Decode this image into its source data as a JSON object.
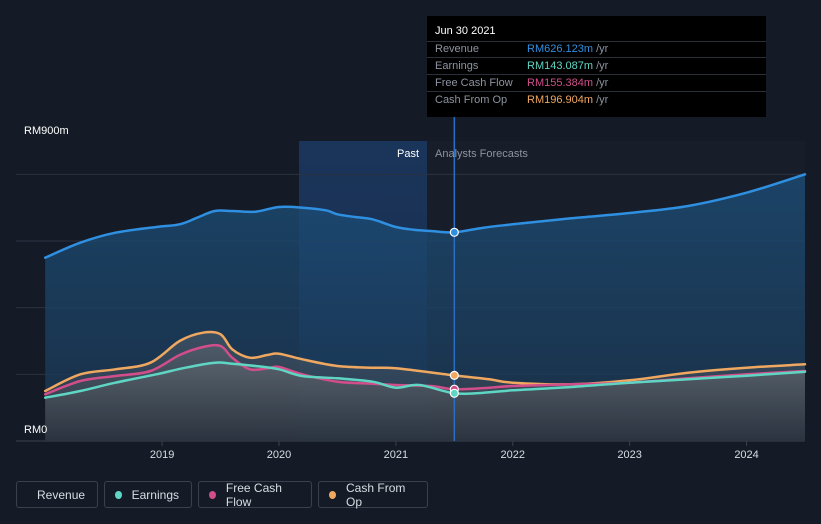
{
  "chart_data": {
    "type": "area",
    "title": "",
    "currency_prefix": "RM",
    "ylim": [
      0,
      900
    ],
    "y_ticks_labels": [
      "RM900m",
      "RM0"
    ],
    "x_ticks": [
      {
        "t": 2019.0,
        "label": "2019"
      },
      {
        "t": 2020.0,
        "label": "2020"
      },
      {
        "t": 2021.0,
        "label": "2021"
      },
      {
        "t": 2022.0,
        "label": "2022"
      },
      {
        "t": 2023.0,
        "label": "2023"
      },
      {
        "t": 2024.0,
        "label": "2024"
      }
    ],
    "xlim": [
      2017.75,
      2024.5
    ],
    "past_label": "Past",
    "forecast_label": "Analysts Forecasts",
    "past_region": [
      2020.5,
      2021.5
    ],
    "divider_t": 2021.5,
    "series": [
      {
        "name": "Revenue",
        "color": "#2f8fe0",
        "points": [
          [
            2018.0,
            550
          ],
          [
            2018.3,
            595
          ],
          [
            2018.6,
            625
          ],
          [
            2018.95,
            642
          ],
          [
            2019.15,
            650
          ],
          [
            2019.3,
            670
          ],
          [
            2019.45,
            690
          ],
          [
            2019.6,
            690
          ],
          [
            2019.8,
            688
          ],
          [
            2020.0,
            702
          ],
          [
            2020.2,
            700
          ],
          [
            2020.4,
            692
          ],
          [
            2020.5,
            680
          ],
          [
            2020.65,
            672
          ],
          [
            2020.8,
            665
          ],
          [
            2021.0,
            642
          ],
          [
            2021.15,
            634
          ],
          [
            2021.3,
            630
          ],
          [
            2021.5,
            626.123
          ],
          [
            2021.75,
            640
          ],
          [
            2022.0,
            650
          ],
          [
            2022.5,
            668
          ],
          [
            2023.0,
            684
          ],
          [
            2023.5,
            705
          ],
          [
            2024.0,
            745
          ],
          [
            2024.5,
            800
          ]
        ]
      },
      {
        "name": "Cash From Op",
        "color": "#f0a860",
        "points": [
          [
            2018.0,
            150
          ],
          [
            2018.3,
            200
          ],
          [
            2018.6,
            215
          ],
          [
            2018.9,
            235
          ],
          [
            2019.15,
            300
          ],
          [
            2019.35,
            325
          ],
          [
            2019.5,
            320
          ],
          [
            2019.6,
            275
          ],
          [
            2019.75,
            250
          ],
          [
            2019.9,
            258
          ],
          [
            2020.0,
            262
          ],
          [
            2020.2,
            245
          ],
          [
            2020.5,
            225
          ],
          [
            2020.8,
            220
          ],
          [
            2021.0,
            218
          ],
          [
            2021.5,
            196.904
          ],
          [
            2021.8,
            185
          ],
          [
            2022.0,
            175
          ],
          [
            2022.5,
            170
          ],
          [
            2023.0,
            182
          ],
          [
            2023.5,
            205
          ],
          [
            2024.0,
            220
          ],
          [
            2024.5,
            230
          ]
        ]
      },
      {
        "name": "Free Cash Flow",
        "color": "#d14e8a",
        "points": [
          [
            2018.0,
            140
          ],
          [
            2018.3,
            180
          ],
          [
            2018.6,
            195
          ],
          [
            2018.9,
            210
          ],
          [
            2019.15,
            258
          ],
          [
            2019.35,
            282
          ],
          [
            2019.5,
            285
          ],
          [
            2019.6,
            250
          ],
          [
            2019.75,
            215
          ],
          [
            2019.9,
            218
          ],
          [
            2020.0,
            222
          ],
          [
            2020.2,
            200
          ],
          [
            2020.5,
            178
          ],
          [
            2020.8,
            172
          ],
          [
            2021.0,
            168
          ],
          [
            2021.3,
            165
          ],
          [
            2021.5,
            155.384
          ],
          [
            2021.8,
            160
          ],
          [
            2022.0,
            165
          ],
          [
            2022.5,
            170
          ],
          [
            2023.0,
            175
          ],
          [
            2023.5,
            188
          ],
          [
            2024.0,
            200
          ],
          [
            2024.5,
            210
          ]
        ]
      },
      {
        "name": "Earnings",
        "color": "#5fd6c4",
        "points": [
          [
            2018.0,
            130
          ],
          [
            2018.3,
            150
          ],
          [
            2018.6,
            175
          ],
          [
            2018.95,
            200
          ],
          [
            2019.2,
            220
          ],
          [
            2019.45,
            235
          ],
          [
            2019.6,
            232
          ],
          [
            2019.8,
            225
          ],
          [
            2020.0,
            215
          ],
          [
            2020.2,
            195
          ],
          [
            2020.5,
            188
          ],
          [
            2020.8,
            178
          ],
          [
            2021.0,
            160
          ],
          [
            2021.2,
            168
          ],
          [
            2021.5,
            143.087
          ],
          [
            2021.75,
            145
          ],
          [
            2022.0,
            152
          ],
          [
            2022.5,
            162
          ],
          [
            2023.0,
            175
          ],
          [
            2023.5,
            185
          ],
          [
            2024.0,
            196
          ],
          [
            2024.5,
            208
          ]
        ]
      }
    ],
    "highlight": {
      "t": 2021.5,
      "date": "Jun 30 2021",
      "rows": [
        {
          "label": "Revenue",
          "value": "RM626.123m",
          "unit": " /yr",
          "color": "#2f8fe0"
        },
        {
          "label": "Earnings",
          "value": "RM143.087m",
          "unit": " /yr",
          "color": "#5fd6c4"
        },
        {
          "label": "Free Cash Flow",
          "value": "RM155.384m",
          "unit": " /yr",
          "color": "#d14e8a"
        },
        {
          "label": "Cash From Op",
          "value": "RM196.904m",
          "unit": " /yr",
          "color": "#f0a860"
        }
      ]
    }
  },
  "legend": [
    {
      "label": "Revenue",
      "color": "#2f8fe0"
    },
    {
      "label": "Earnings",
      "color": "#5fd6c4"
    },
    {
      "label": "Free Cash Flow",
      "color": "#d14e8a"
    },
    {
      "label": "Cash From Op",
      "color": "#f0a860"
    }
  ]
}
